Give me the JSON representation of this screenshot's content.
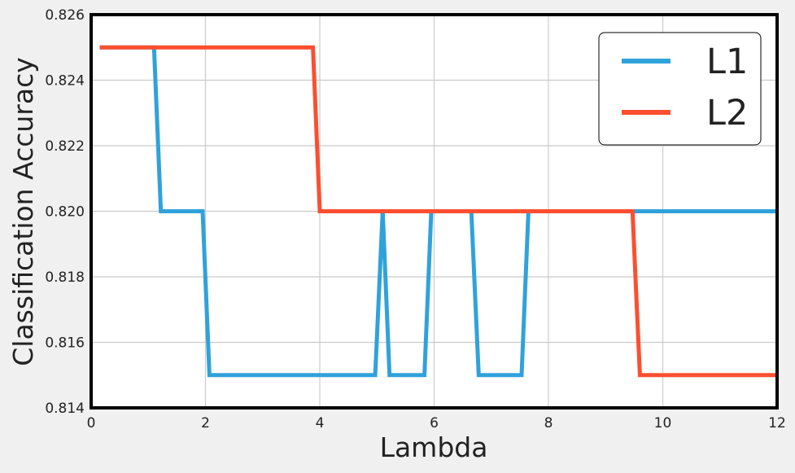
{
  "chart_data": {
    "type": "line",
    "xlabel": "Lambda",
    "ylabel": "Classification Accuracy",
    "xlim": [
      0,
      12
    ],
    "ylim": [
      0.814,
      0.826
    ],
    "xticks": [
      0,
      2,
      4,
      6,
      8,
      10,
      12
    ],
    "xtick_labels": [
      "0",
      "2",
      "4",
      "6",
      "8",
      "10",
      "12"
    ],
    "yticks": [
      0.814,
      0.816,
      0.818,
      0.82,
      0.822,
      0.824,
      0.826
    ],
    "ytick_labels": [
      "0.814",
      "0.816",
      "0.818",
      "0.820",
      "0.822",
      "0.824",
      "0.826"
    ],
    "grid": true,
    "legend_position": "top-right",
    "series": [
      {
        "name": "L1",
        "color": "#30a2da",
        "x": [
          0.15,
          1.1,
          1.22,
          1.95,
          2.07,
          4.97,
          5.1,
          5.22,
          5.83,
          5.95,
          6.65,
          6.78,
          7.53,
          7.65,
          12
        ],
        "y": [
          0.825,
          0.825,
          0.82,
          0.82,
          0.815,
          0.815,
          0.82,
          0.815,
          0.815,
          0.82,
          0.82,
          0.815,
          0.815,
          0.82,
          0.82
        ]
      },
      {
        "name": "L2",
        "color": "#fc4f30",
        "x": [
          0.15,
          3.88,
          4.0,
          9.47,
          9.6,
          12
        ],
        "y": [
          0.825,
          0.825,
          0.82,
          0.82,
          0.815,
          0.815
        ]
      }
    ]
  }
}
